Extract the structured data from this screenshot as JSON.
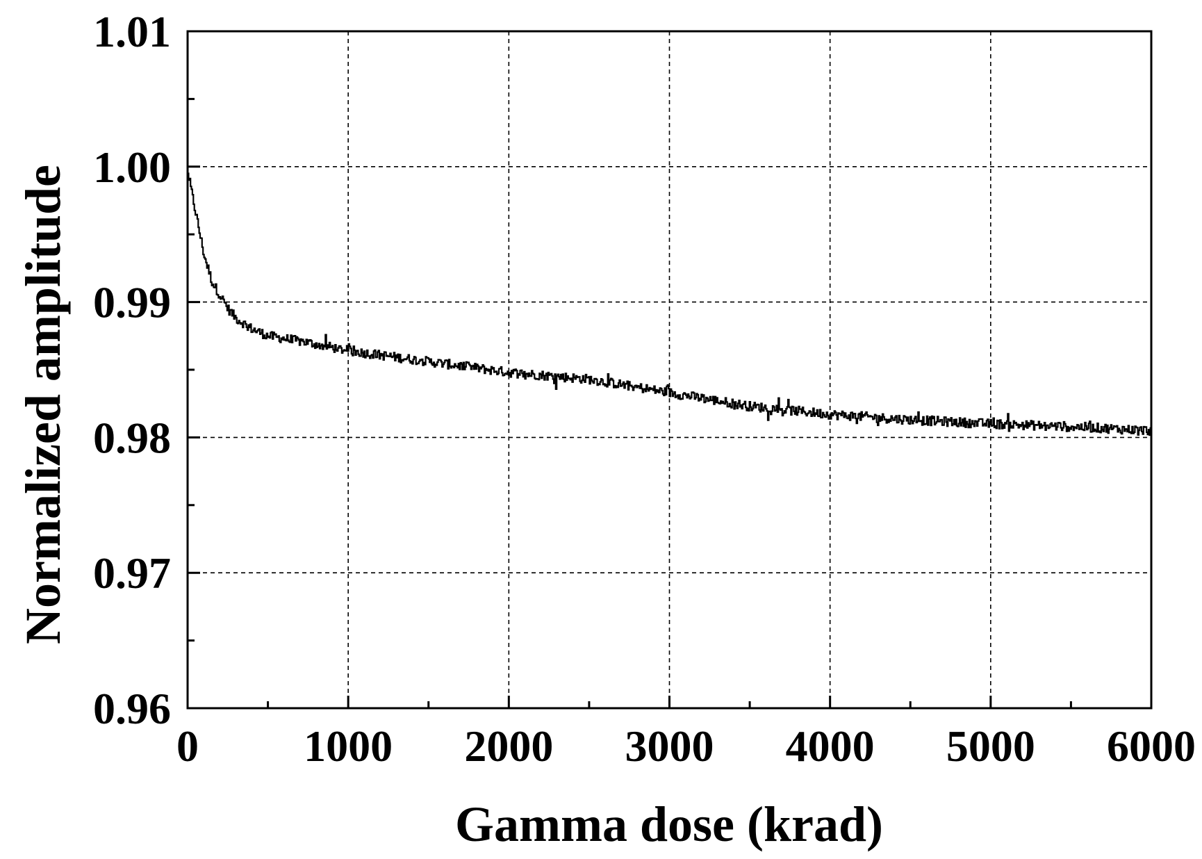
{
  "chart_data": {
    "type": "line",
    "xlabel": "Gamma dose (krad)",
    "ylabel": "Normalized amplitude",
    "xlim": [
      0,
      6000
    ],
    "ylim": [
      0.96,
      1.01
    ],
    "x_ticks": [
      0,
      1000,
      2000,
      3000,
      4000,
      5000,
      6000
    ],
    "x_tick_labels": [
      "0",
      "1000",
      "2000",
      "3000",
      "4000",
      "5000",
      "6000"
    ],
    "x_minor_ticks": [
      500,
      1500,
      2500,
      3500,
      4500,
      5500
    ],
    "y_ticks": [
      0.96,
      0.97,
      0.98,
      0.99,
      1.0,
      1.01
    ],
    "y_tick_labels": [
      "0.96",
      "0.97",
      "0.98",
      "0.99",
      "1.00",
      "1.01"
    ],
    "y_minor_ticks": [
      0.965,
      0.975,
      0.985,
      0.995,
      1.005
    ],
    "grid": true,
    "series": [
      {
        "color": "#000000",
        "noise_amplitude": 0.0005,
        "trend": {
          "x": [
            0,
            50,
            100,
            150,
            200,
            250,
            300,
            400,
            500,
            750,
            1000,
            1250,
            1500,
            2000,
            2500,
            3000,
            3500,
            4000,
            4500,
            5000,
            5500,
            6000
          ],
          "y": [
            0.9995,
            0.9965,
            0.9935,
            0.9915,
            0.9905,
            0.9895,
            0.9888,
            0.988,
            0.9875,
            0.987,
            0.9864,
            0.986,
            0.9856,
            0.9848,
            0.9843,
            0.9833,
            0.9823,
            0.9817,
            0.9813,
            0.981,
            0.9808,
            0.9805
          ]
        }
      }
    ]
  }
}
